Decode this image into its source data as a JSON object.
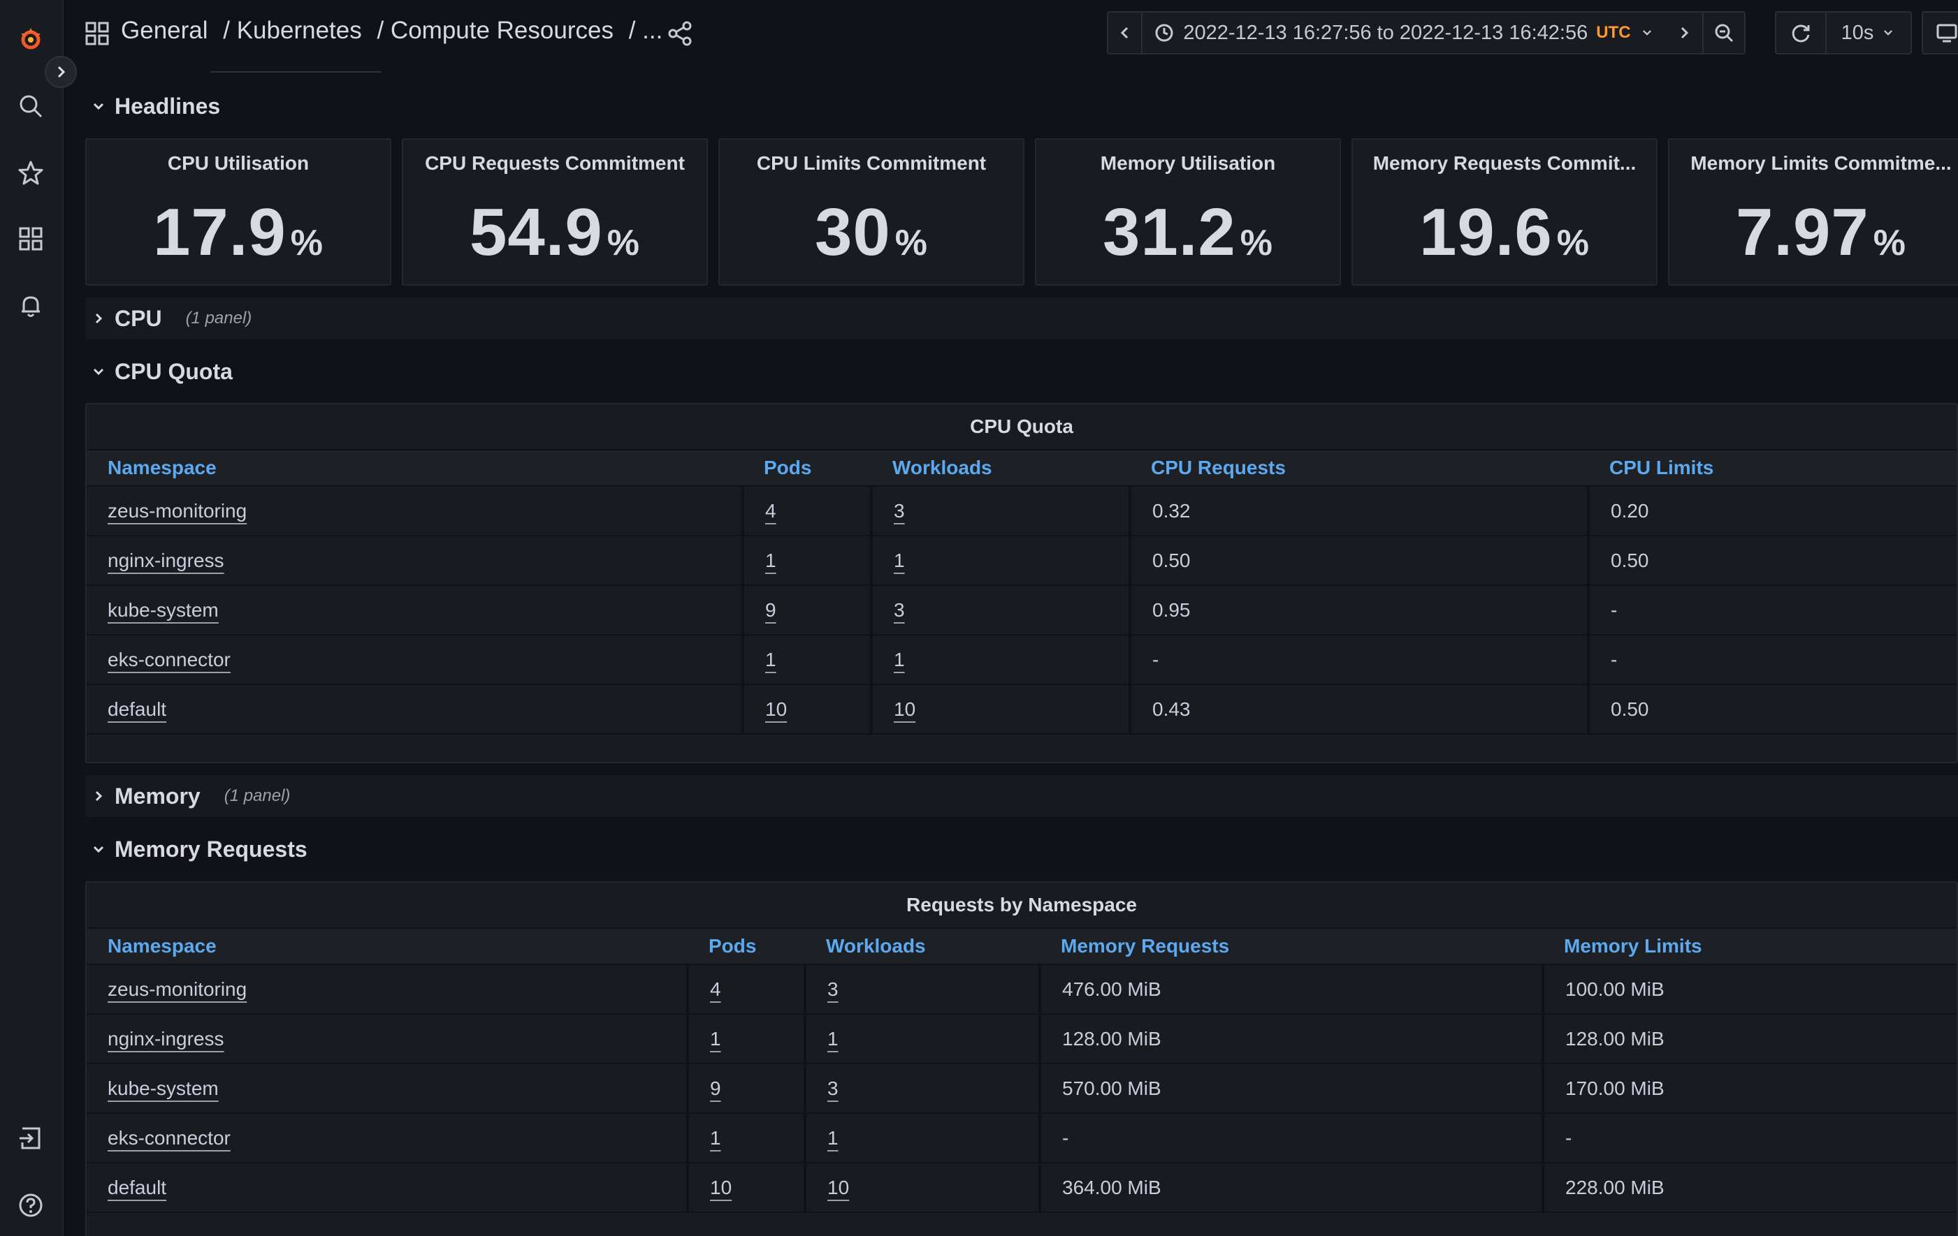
{
  "breadcrumb": [
    "General",
    "/ Kubernetes",
    "/ Compute Resources",
    "/ ..."
  ],
  "time_picker": {
    "range": "2022-12-13 16:27:56 to 2022-12-13 16:42:56",
    "timezone": "UTC"
  },
  "refresh": {
    "interval": "10s"
  },
  "rows": {
    "headlines": "Headlines",
    "cpu": {
      "title": "CPU",
      "count": "(1 panel)"
    },
    "cpu_quota": "CPU Quota",
    "memory": {
      "title": "Memory",
      "count": "(1 panel)"
    },
    "memory_requests": "Memory Requests"
  },
  "stats": [
    {
      "title": "CPU Utilisation",
      "value": "17.9",
      "unit": "%"
    },
    {
      "title": "CPU Requests Commitment",
      "value": "54.9",
      "unit": "%"
    },
    {
      "title": "CPU Limits Commitment",
      "value": "30",
      "unit": "%"
    },
    {
      "title": "Memory Utilisation",
      "value": "31.2",
      "unit": "%"
    },
    {
      "title": "Memory Requests Commit...",
      "value": "19.6",
      "unit": "%"
    },
    {
      "title": "Memory Limits Commitme...",
      "value": "7.97",
      "unit": "%"
    }
  ],
  "cpu_quota_table": {
    "title": "CPU Quota",
    "headers": [
      "Namespace",
      "Pods",
      "Workloads",
      "CPU Requests",
      "CPU Limits"
    ],
    "rows": [
      [
        "zeus-monitoring",
        "4",
        "3",
        "0.32",
        "0.20"
      ],
      [
        "nginx-ingress",
        "1",
        "1",
        "0.50",
        "0.50"
      ],
      [
        "kube-system",
        "9",
        "3",
        "0.95",
        "-"
      ],
      [
        "eks-connector",
        "1",
        "1",
        "-",
        "-"
      ],
      [
        "default",
        "10",
        "10",
        "0.43",
        "0.50"
      ]
    ]
  },
  "memory_table": {
    "title": "Requests by Namespace",
    "headers": [
      "Namespace",
      "Pods",
      "Workloads",
      "Memory Requests",
      "Memory Limits"
    ],
    "rows": [
      [
        "zeus-monitoring",
        "4",
        "3",
        "476.00 MiB",
        "100.00 MiB"
      ],
      [
        "nginx-ingress",
        "1",
        "1",
        "128.00 MiB",
        "128.00 MiB"
      ],
      [
        "kube-system",
        "9",
        "3",
        "570.00 MiB",
        "170.00 MiB"
      ],
      [
        "eks-connector",
        "1",
        "1",
        "-",
        "-"
      ],
      [
        "default",
        "10",
        "10",
        "364.00 MiB",
        "228.00 MiB"
      ]
    ]
  }
}
